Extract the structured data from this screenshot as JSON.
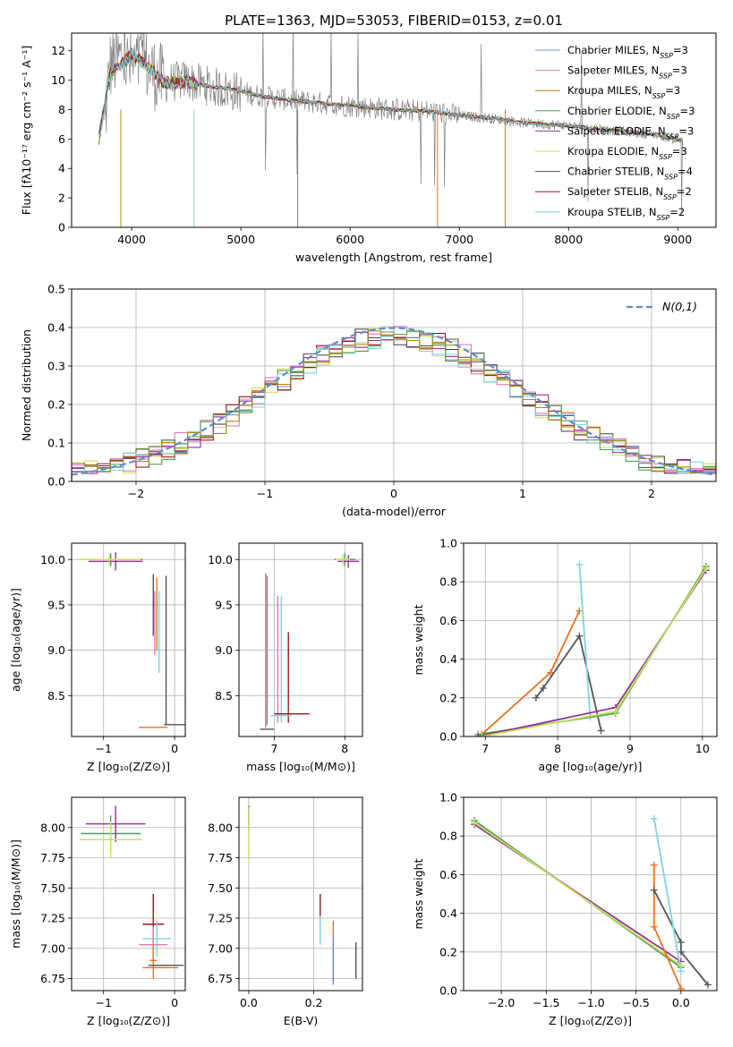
{
  "chart_data": [
    {
      "id": "spectrum",
      "type": "line",
      "title": "PLATE=1363, MJD=53053, FIBERID=0153, z=0.01",
      "xlabel": "wavelength [Angstrom, rest frame]",
      "ylabel": "Flux [fλ10⁻¹⁷ erg cm⁻² s⁻¹ A⁻¹]",
      "xlim": [
        3450,
        9350
      ],
      "ylim": [
        0,
        13.2
      ],
      "xticks": [
        4000,
        5000,
        6000,
        7000,
        8000,
        9000
      ],
      "yticks": [
        0,
        2,
        4,
        6,
        8,
        10,
        12
      ],
      "grid": false,
      "legend": "top-right",
      "data_trace": {
        "name": "",
        "color": "#808080",
        "x": [
          3750,
          3800,
          3900,
          4000,
          4100,
          4200,
          4300,
          4500,
          4700,
          4900,
          5200,
          5500,
          5800,
          6100,
          6400,
          6700,
          7000,
          7300,
          7600,
          8000,
          8400,
          8800,
          9050
        ],
        "y": [
          6.5,
          11.0,
          11.5,
          10.8,
          11.2,
          10.5,
          9.8,
          10.0,
          9.6,
          9.3,
          8.9,
          8.6,
          8.4,
          8.2,
          8.0,
          7.9,
          7.6,
          7.4,
          7.1,
          6.9,
          6.6,
          6.3,
          5.9
        ]
      },
      "models": {
        "x": [
          3700,
          3800,
          3900,
          4000,
          4100,
          4200,
          4300,
          4500,
          4700,
          4900,
          5200,
          5500,
          5800,
          6100,
          6400,
          6700,
          7000,
          7300,
          7600,
          8000,
          8400,
          8800,
          9050
        ],
        "y": [
          6.0,
          10.5,
          11.0,
          11.8,
          11.2,
          10.6,
          9.8,
          9.9,
          9.6,
          9.4,
          8.9,
          8.6,
          8.4,
          8.2,
          8.0,
          7.9,
          7.6,
          7.4,
          7.1,
          6.9,
          6.6,
          6.3,
          5.9
        ]
      }
    },
    {
      "id": "residual-histogram",
      "type": "histogram",
      "xlabel": "(data-model)/error",
      "ylabel": "Normed distribution",
      "xlim": [
        -2.5,
        2.5
      ],
      "ylim": [
        0,
        0.5
      ],
      "xticks": [
        -2,
        -1,
        0,
        1,
        2
      ],
      "yticks": [
        0.0,
        0.1,
        0.2,
        0.3,
        0.4,
        0.5
      ],
      "grid": true,
      "legend": "top-right",
      "reference_curve": {
        "label": "N(0,1)",
        "color": "#5b8bd6",
        "mean": 0,
        "sigma": 1
      },
      "bin_width": 0.1
    },
    {
      "id": "age-vs-Z",
      "type": "errorbar",
      "xlabel": "Z [log₁₀(Z/Z⊙)]",
      "ylabel": "age  [log₁₀(age/yr)]",
      "xlim": [
        -1.45,
        0.15
      ],
      "ylim": [
        8.05,
        10.18
      ],
      "xticks": [
        -1,
        0
      ],
      "yticks": [
        8.5,
        9.0,
        9.5,
        10.0
      ],
      "grid": true,
      "points": [
        {
          "x": -0.9,
          "y": 10.0,
          "xerr": 0.45,
          "yerr": 0.07,
          "c": "#4f9f4f"
        },
        {
          "x": -0.83,
          "y": 9.98,
          "xerr": 0.38,
          "yerr": 0.1,
          "c": "#9a2f9a"
        },
        {
          "x": -0.92,
          "y": 10.0,
          "xerr": 0.44,
          "yerr": 0.06,
          "c": "#c5e35a"
        },
        {
          "x": -0.3,
          "y": 9.5,
          "xerr": 0.0,
          "yerr": 0.34,
          "c": "#555555"
        },
        {
          "x": -0.25,
          "y": 9.4,
          "xerr": 0.0,
          "yerr": 0.4,
          "c": "#e8721f"
        },
        {
          "x": -0.28,
          "y": 9.3,
          "xerr": 0.0,
          "yerr": 0.35,
          "c": "#e377c2"
        },
        {
          "x": -0.22,
          "y": 9.2,
          "xerr": 0.0,
          "yerr": 0.45,
          "c": "#7fd3df"
        },
        {
          "x": -0.12,
          "y": 9.0,
          "xerr": 0.0,
          "yerr": 0.82,
          "c": "#555555"
        },
        {
          "x": -0.25,
          "y": 8.3,
          "xerr": 0.0,
          "yerr": 0.0,
          "c": "#7fd3df"
        },
        {
          "x": -0.3,
          "y": 8.15,
          "xerr": 0.2,
          "yerr": 0.0,
          "c": "#e8721f"
        },
        {
          "x": 0.0,
          "y": 8.18,
          "xerr": 0.15,
          "yerr": 0.0,
          "c": "#555555"
        }
      ]
    },
    {
      "id": "age-vs-mass",
      "type": "errorbar",
      "xlabel": "mass [log₁₀(M/M⊙)]",
      "ylabel": "",
      "xlim": [
        6.5,
        8.25
      ],
      "ylim": [
        8.05,
        10.18
      ],
      "xticks": [
        7,
        8
      ],
      "yticks": [
        8.5,
        9.0,
        9.5,
        10.0
      ],
      "grid": true,
      "points": [
        {
          "x": 8.0,
          "y": 10.0,
          "xerr": 0.15,
          "yerr": 0.07,
          "c": "#4f9f4f"
        },
        {
          "x": 8.05,
          "y": 9.98,
          "xerr": 0.15,
          "yerr": 0.07,
          "c": "#9a2f9a"
        },
        {
          "x": 7.97,
          "y": 10.0,
          "xerr": 0.1,
          "yerr": 0.06,
          "c": "#c5e35a"
        },
        {
          "x": 6.88,
          "y": 9.0,
          "xerr": 0.0,
          "yerr": 0.85,
          "c": "#e8721f"
        },
        {
          "x": 6.9,
          "y": 9.0,
          "xerr": 0.0,
          "yerr": 0.82,
          "c": "#6d8fdc"
        },
        {
          "x": 7.05,
          "y": 8.9,
          "xerr": 0.0,
          "yerr": 0.7,
          "c": "#e377c2"
        },
        {
          "x": 7.1,
          "y": 8.9,
          "xerr": 0.0,
          "yerr": 0.7,
          "c": "#7fd3df"
        },
        {
          "x": 7.2,
          "y": 8.7,
          "xerr": 0.0,
          "yerr": 0.5,
          "c": "#a31515"
        },
        {
          "x": 7.25,
          "y": 8.3,
          "xerr": 0.25,
          "yerr": 0.0,
          "c": "#a31515"
        },
        {
          "x": 7.1,
          "y": 8.28,
          "xerr": 0.15,
          "yerr": 0.0,
          "c": "#7fd3df"
        },
        {
          "x": 6.9,
          "y": 8.13,
          "xerr": 0.1,
          "yerr": 0.0,
          "c": "#555555"
        }
      ]
    },
    {
      "id": "massweight-vs-age",
      "type": "line",
      "xlabel": "age  [log₁₀(age/yr)]",
      "ylabel": "mass weight",
      "xlim": [
        6.7,
        10.2
      ],
      "ylim": [
        0,
        1
      ],
      "xticks": [
        7,
        8,
        9,
        10
      ],
      "yticks": [
        0.0,
        0.2,
        0.4,
        0.6,
        0.8,
        1.0
      ],
      "grid": true,
      "series": [
        {
          "c": "#e8721f",
          "x": [
            6.95,
            7.9,
            8.3
          ],
          "y": [
            0.01,
            0.33,
            0.65
          ]
        },
        {
          "c": "#555555",
          "x": [
            7.7,
            7.8,
            8.3,
            8.6
          ],
          "y": [
            0.2,
            0.25,
            0.52,
            0.03
          ]
        },
        {
          "c": "#7fd3df",
          "x": [
            8.3,
            8.45
          ],
          "y": [
            0.89,
            0.1
          ]
        },
        {
          "c": "#4f9f4f",
          "x": [
            6.9,
            8.8,
            10.05
          ],
          "y": [
            0.01,
            0.12,
            0.88
          ]
        },
        {
          "c": "#9a2f9a",
          "x": [
            6.9,
            8.8,
            10.05
          ],
          "y": [
            0.0,
            0.15,
            0.86
          ]
        },
        {
          "c": "#c5e35a",
          "x": [
            6.95,
            8.8,
            10.05
          ],
          "y": [
            0.0,
            0.13,
            0.87
          ]
        }
      ]
    },
    {
      "id": "mass-vs-Z",
      "type": "errorbar",
      "xlabel": "Z [log₁₀(Z/Z⊙)]",
      "ylabel": "mass [log₁₀(M/M⊙)]",
      "xlim": [
        -1.45,
        0.15
      ],
      "ylim": [
        6.65,
        8.25
      ],
      "xticks": [
        -1,
        0
      ],
      "yticks": [
        6.75,
        7.0,
        7.25,
        7.5,
        7.75,
        8.0
      ],
      "grid": true,
      "points": [
        {
          "x": -0.9,
          "y": 7.95,
          "xerr": 0.42,
          "yerr": 0.15,
          "c": "#4f9f4f"
        },
        {
          "x": -0.83,
          "y": 8.03,
          "xerr": 0.42,
          "yerr": 0.15,
          "c": "#9a2f9a"
        },
        {
          "x": -0.9,
          "y": 7.9,
          "xerr": 0.44,
          "yerr": 0.15,
          "c": "#c5e35a"
        },
        {
          "x": -0.3,
          "y": 7.2,
          "xerr": 0.15,
          "yerr": 0.25,
          "c": "#a31515"
        },
        {
          "x": -0.25,
          "y": 7.08,
          "xerr": 0.2,
          "yerr": 0.15,
          "c": "#7fd3df"
        },
        {
          "x": -0.3,
          "y": 7.03,
          "xerr": 0.2,
          "yerr": 0.15,
          "c": "#e377c2"
        },
        {
          "x": -0.3,
          "y": 6.9,
          "xerr": 0.05,
          "yerr": 0.15,
          "c": "#e8721f"
        },
        {
          "x": -0.12,
          "y": 6.86,
          "xerr": 0.25,
          "yerr": 0.0,
          "c": "#555555"
        },
        {
          "x": -0.2,
          "y": 6.84,
          "xerr": 0.25,
          "yerr": 0.0,
          "c": "#e8721f"
        }
      ]
    },
    {
      "id": "mass-vs-ebv",
      "type": "errorbar",
      "xlabel": "E(B-V)",
      "ylabel": "",
      "xlim": [
        -0.03,
        0.35
      ],
      "ylim": [
        6.65,
        8.25
      ],
      "xticks": [
        0.0,
        0.2
      ],
      "yticks": [
        6.75,
        7.0,
        7.25,
        7.5,
        7.75,
        8.0
      ],
      "grid": true,
      "points": [
        {
          "x": 0.0,
          "y": 8.08,
          "xerr": 0.0,
          "yerr": 0.1,
          "c": "#9a2f9a"
        },
        {
          "x": 0.0,
          "y": 7.95,
          "xerr": 0.0,
          "yerr": 0.22,
          "c": "#c5e35a"
        },
        {
          "x": 0.22,
          "y": 7.3,
          "xerr": 0.0,
          "yerr": 0.15,
          "c": "#a31515"
        },
        {
          "x": 0.22,
          "y": 7.15,
          "xerr": 0.0,
          "yerr": 0.12,
          "c": "#7fd3df"
        },
        {
          "x": 0.26,
          "y": 6.98,
          "xerr": 0.0,
          "yerr": 0.25,
          "c": "#e8721f"
        },
        {
          "x": 0.26,
          "y": 6.9,
          "xerr": 0.0,
          "yerr": 0.2,
          "c": "#6d8fdc"
        },
        {
          "x": 0.33,
          "y": 6.9,
          "xerr": 0.0,
          "yerr": 0.15,
          "c": "#555555"
        }
      ]
    },
    {
      "id": "massweight-vs-Z",
      "type": "line",
      "xlabel": "Z [log₁₀(Z/Z⊙)]",
      "ylabel": "mass weight",
      "xlim": [
        -2.42,
        0.4
      ],
      "ylim": [
        0,
        1
      ],
      "xticks": [
        -2.0,
        -1.5,
        -1.0,
        -0.5,
        0.0
      ],
      "yticks": [
        0.0,
        0.2,
        0.4,
        0.6,
        0.8,
        1.0
      ],
      "grid": true,
      "series": [
        {
          "c": "#4f9f4f",
          "x": [
            -2.3,
            0.0
          ],
          "y": [
            0.88,
            0.12
          ]
        },
        {
          "c": "#9a2f9a",
          "x": [
            -2.3,
            0.0
          ],
          "y": [
            0.86,
            0.15
          ]
        },
        {
          "c": "#c5e35a",
          "x": [
            -2.3,
            0.0
          ],
          "y": [
            0.87,
            0.13
          ]
        },
        {
          "c": "#e8721f",
          "x": [
            -0.3,
            -0.3,
            0.0
          ],
          "y": [
            0.65,
            0.33,
            0.01
          ]
        },
        {
          "c": "#555555",
          "x": [
            -0.3,
            0.0,
            0.0,
            0.3
          ],
          "y": [
            0.52,
            0.25,
            0.2,
            0.03
          ]
        },
        {
          "c": "#7fd3df",
          "x": [
            -0.3,
            0.0
          ],
          "y": [
            0.89,
            0.1
          ]
        }
      ]
    }
  ],
  "legend": [
    {
      "model": "Chabrier MILES",
      "nssp": "3",
      "color": "#6d8fdc"
    },
    {
      "model": "Salpeter MILES",
      "nssp": "3",
      "color": "#e377c2"
    },
    {
      "model": "Kroupa MILES",
      "nssp": "3",
      "color": "#b8860b"
    },
    {
      "model": "Chabrier ELODIE",
      "nssp": "3",
      "color": "#4f9f4f"
    },
    {
      "model": "Salpeter ELODIE",
      "nssp": "3",
      "color": "#9a2f9a"
    },
    {
      "model": "Kroupa ELODIE",
      "nssp": "3",
      "color": "#c5e35a"
    },
    {
      "model": "Chabrier STELIB",
      "nssp": "4",
      "color": "#555555"
    },
    {
      "model": "Salpeter STELIB",
      "nssp": "2",
      "color": "#a31515"
    },
    {
      "model": "Kroupa STELIB",
      "nssp": "2",
      "color": "#7fd3df"
    }
  ],
  "hist_colors": [
    "#c5e35a",
    "#e377c2",
    "#9a2f9a",
    "#a31515",
    "#555555",
    "#4f9f4f",
    "#7fd3df",
    "#b8860b"
  ]
}
